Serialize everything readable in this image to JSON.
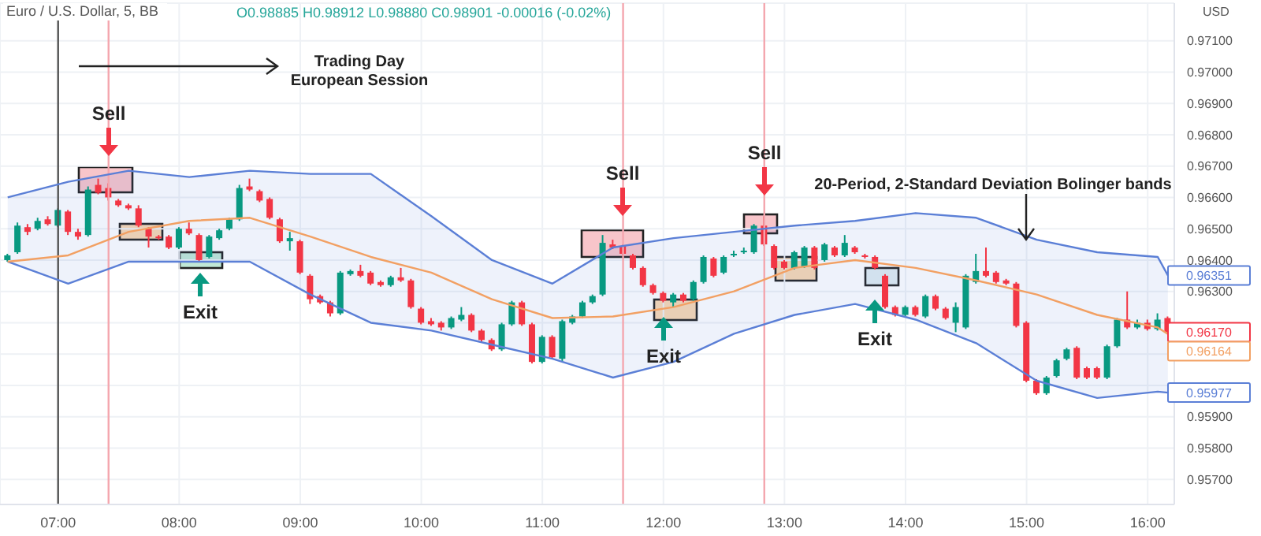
{
  "chart_data": {
    "type": "candlestick",
    "title": "Euro / U.S. Dollar, 5, BB",
    "subtitle": "O0.98885 H0.98912 L0.98880 C0.98901 -0.00016 (-0.02%)",
    "ylabel": "USD",
    "x": [
      6.5833,
      6.6667,
      6.75,
      6.8333,
      6.9167,
      7,
      7.0833,
      7.1667,
      7.25,
      7.3333,
      7.4167,
      7.5,
      7.5833,
      7.6667,
      7.75,
      7.8333,
      7.9167,
      8,
      8.0833,
      8.1667,
      8.25,
      8.3333,
      8.4167,
      8.5,
      8.5833,
      8.6667,
      8.75,
      8.8333,
      8.9167,
      9,
      9.0833,
      9.1667,
      9.25,
      9.3333,
      9.4167,
      9.5,
      9.5833,
      9.6667,
      9.75,
      9.8333,
      9.9167,
      10,
      10.0833,
      10.1667,
      10.25,
      10.3333,
      10.4167,
      10.5,
      10.5833,
      10.6667,
      10.75,
      10.8333,
      10.9167,
      11,
      11.0833,
      11.1667,
      11.25,
      11.3333,
      11.4167,
      11.5,
      11.5833,
      11.6667,
      11.75,
      11.8333,
      11.9167,
      12,
      12.0833,
      12.1667,
      12.25,
      12.3333,
      12.4167,
      12.5,
      12.5833,
      12.6667,
      12.75,
      12.8333,
      12.9167,
      13,
      13.0833,
      13.1667,
      13.25,
      13.3333,
      13.4167,
      13.5,
      13.5833,
      13.6667,
      13.75,
      13.8333,
      13.9167,
      14,
      14.0833,
      14.1667,
      14.25,
      14.3333,
      14.4167,
      14.5,
      14.5833,
      14.6667,
      14.75,
      14.8333,
      14.9167,
      15,
      15.0833,
      15.1667,
      15.25,
      15.3333,
      15.4167,
      15.5,
      15.5833,
      15.6667,
      15.75,
      15.8333,
      15.9167,
      16,
      16.0833,
      16.1667
    ],
    "ohlc": [
      [
        0.964,
        0.9642,
        0.96395,
        0.96415
      ],
      [
        0.96425,
        0.9652,
        0.9642,
        0.9651
      ],
      [
        0.96505,
        0.96515,
        0.9648,
        0.9649
      ],
      [
        0.965,
        0.96535,
        0.96495,
        0.96525
      ],
      [
        0.9653,
        0.9654,
        0.9651,
        0.96515
      ],
      [
        0.9651,
        0.96565,
        0.96505,
        0.9656
      ],
      [
        0.96555,
        0.9656,
        0.9648,
        0.9649
      ],
      [
        0.9649,
        0.965,
        0.96465,
        0.96475
      ],
      [
        0.9648,
        0.96635,
        0.96475,
        0.96625
      ],
      [
        0.9664,
        0.9666,
        0.9661,
        0.96615
      ],
      [
        0.9663,
        0.96645,
        0.9659,
        0.966
      ],
      [
        0.9659,
        0.96595,
        0.9657,
        0.96575
      ],
      [
        0.96575,
        0.9658,
        0.9656,
        0.96565
      ],
      [
        0.96565,
        0.96575,
        0.96505,
        0.9651
      ],
      [
        0.965,
        0.96505,
        0.9644,
        0.96475
      ],
      [
        0.96475,
        0.9648,
        0.96465,
        0.9647
      ],
      [
        0.96475,
        0.9648,
        0.96435,
        0.9644
      ],
      [
        0.9644,
        0.96505,
        0.96435,
        0.965
      ],
      [
        0.965,
        0.9652,
        0.9648,
        0.96485
      ],
      [
        0.9648,
        0.96485,
        0.96395,
        0.964
      ],
      [
        0.9641,
        0.9648,
        0.96405,
        0.96475
      ],
      [
        0.9647,
        0.965,
        0.96465,
        0.96495
      ],
      [
        0.965,
        0.96535,
        0.96495,
        0.9653
      ],
      [
        0.9653,
        0.9664,
        0.96525,
        0.9663
      ],
      [
        0.96635,
        0.9666,
        0.9662,
        0.96625
      ],
      [
        0.9662,
        0.96625,
        0.96585,
        0.9659
      ],
      [
        0.96595,
        0.966,
        0.9653,
        0.96535
      ],
      [
        0.9653,
        0.96535,
        0.96455,
        0.9646
      ],
      [
        0.9646,
        0.9649,
        0.9643,
        0.9647
      ],
      [
        0.9646,
        0.96465,
        0.96355,
        0.9636
      ],
      [
        0.9635,
        0.96355,
        0.9626,
        0.96275
      ],
      [
        0.96285,
        0.9629,
        0.9626,
        0.96265
      ],
      [
        0.96265,
        0.9627,
        0.9622,
        0.9623
      ],
      [
        0.9623,
        0.96365,
        0.96225,
        0.9636
      ],
      [
        0.96355,
        0.9637,
        0.9635,
        0.96365
      ],
      [
        0.96365,
        0.96385,
        0.96345,
        0.9635
      ],
      [
        0.9636,
        0.96365,
        0.9632,
        0.96325
      ],
      [
        0.9633,
        0.96335,
        0.96315,
        0.9632
      ],
      [
        0.9632,
        0.9635,
        0.96315,
        0.96345
      ],
      [
        0.96345,
        0.96375,
        0.9633,
        0.96335
      ],
      [
        0.96335,
        0.9634,
        0.96245,
        0.9625
      ],
      [
        0.96245,
        0.9625,
        0.96195,
        0.962
      ],
      [
        0.96205,
        0.96215,
        0.9619,
        0.96195
      ],
      [
        0.962,
        0.96205,
        0.96175,
        0.96185
      ],
      [
        0.96185,
        0.9622,
        0.9618,
        0.96215
      ],
      [
        0.9621,
        0.9625,
        0.96205,
        0.96225
      ],
      [
        0.96225,
        0.9623,
        0.9617,
        0.96175
      ],
      [
        0.96175,
        0.9618,
        0.9614,
        0.96145
      ],
      [
        0.96145,
        0.9615,
        0.9611,
        0.96115
      ],
      [
        0.96115,
        0.962,
        0.9611,
        0.96195
      ],
      [
        0.96195,
        0.9627,
        0.9619,
        0.96265
      ],
      [
        0.96265,
        0.9627,
        0.9619,
        0.96195
      ],
      [
        0.96195,
        0.962,
        0.9607,
        0.96075
      ],
      [
        0.96075,
        0.9616,
        0.9607,
        0.96155
      ],
      [
        0.96155,
        0.9616,
        0.96085,
        0.9609
      ],
      [
        0.96085,
        0.9621,
        0.96075,
        0.96205
      ],
      [
        0.962,
        0.96225,
        0.96195,
        0.9622
      ],
      [
        0.9622,
        0.9627,
        0.96215,
        0.96265
      ],
      [
        0.96265,
        0.9629,
        0.9626,
        0.96285
      ],
      [
        0.9629,
        0.9648,
        0.96285,
        0.96455
      ],
      [
        0.9645,
        0.96465,
        0.96435,
        0.9644
      ],
      [
        0.96445,
        0.9645,
        0.96415,
        0.9642
      ],
      [
        0.96415,
        0.9642,
        0.9637,
        0.96375
      ],
      [
        0.96375,
        0.9638,
        0.96315,
        0.9632
      ],
      [
        0.9632,
        0.96325,
        0.9629,
        0.96295
      ],
      [
        0.96295,
        0.963,
        0.96265,
        0.9627
      ],
      [
        0.96265,
        0.96295,
        0.9625,
        0.9629
      ],
      [
        0.9629,
        0.96295,
        0.96265,
        0.9627
      ],
      [
        0.96275,
        0.96335,
        0.9627,
        0.9633
      ],
      [
        0.9633,
        0.96415,
        0.96325,
        0.9641
      ],
      [
        0.96405,
        0.9641,
        0.96345,
        0.9635
      ],
      [
        0.9636,
        0.96415,
        0.96355,
        0.9641
      ],
      [
        0.96415,
        0.9643,
        0.9641,
        0.9642
      ],
      [
        0.96425,
        0.9644,
        0.9642,
        0.9643
      ],
      [
        0.96425,
        0.96515,
        0.9642,
        0.9651
      ],
      [
        0.9651,
        0.9654,
        0.96445,
        0.9645
      ],
      [
        0.96445,
        0.9645,
        0.9637,
        0.96375
      ],
      [
        0.96395,
        0.964,
        0.9637,
        0.96375
      ],
      [
        0.96375,
        0.9643,
        0.9637,
        0.96425
      ],
      [
        0.9638,
        0.96445,
        0.96375,
        0.9644
      ],
      [
        0.9644,
        0.96445,
        0.9637,
        0.96375
      ],
      [
        0.964,
        0.96455,
        0.96395,
        0.9645
      ],
      [
        0.9644,
        0.96445,
        0.9641,
        0.96415
      ],
      [
        0.96415,
        0.9648,
        0.9641,
        0.96455
      ],
      [
        0.9644,
        0.96445,
        0.9642,
        0.96425
      ],
      [
        0.96415,
        0.9642,
        0.96405,
        0.9641
      ],
      [
        0.9641,
        0.96415,
        0.9637,
        0.96375
      ],
      [
        0.9635,
        0.96355,
        0.96245,
        0.9625
      ],
      [
        0.9625,
        0.96255,
        0.9622,
        0.96225
      ],
      [
        0.96225,
        0.96255,
        0.9622,
        0.9625
      ],
      [
        0.9625,
        0.96255,
        0.9622,
        0.96225
      ],
      [
        0.9622,
        0.9629,
        0.96215,
        0.96285
      ],
      [
        0.96285,
        0.9629,
        0.9624,
        0.96245
      ],
      [
        0.96245,
        0.9625,
        0.9621,
        0.96215
      ],
      [
        0.962,
        0.96265,
        0.9617,
        0.9625
      ],
      [
        0.96185,
        0.96355,
        0.9618,
        0.9635
      ],
      [
        0.9633,
        0.9642,
        0.96325,
        0.96365
      ],
      [
        0.96365,
        0.9644,
        0.96345,
        0.9635
      ],
      [
        0.9636,
        0.96365,
        0.96325,
        0.9633
      ],
      [
        0.96335,
        0.9634,
        0.9632,
        0.96325
      ],
      [
        0.96325,
        0.9633,
        0.96185,
        0.9619
      ],
      [
        0.962,
        0.96205,
        0.9601,
        0.96015
      ],
      [
        0.96015,
        0.9602,
        0.9597,
        0.95975
      ],
      [
        0.95975,
        0.9603,
        0.9597,
        0.96025
      ],
      [
        0.9603,
        0.96085,
        0.96025,
        0.9608
      ],
      [
        0.96085,
        0.9612,
        0.9608,
        0.96115
      ],
      [
        0.9612,
        0.96125,
        0.9602,
        0.96025
      ],
      [
        0.96055,
        0.9606,
        0.9602,
        0.96025
      ],
      [
        0.96055,
        0.9606,
        0.9602,
        0.96025
      ],
      [
        0.96025,
        0.9613,
        0.9602,
        0.96125
      ],
      [
        0.96125,
        0.96215,
        0.9612,
        0.9621
      ],
      [
        0.9621,
        0.963,
        0.9618,
        0.96185
      ],
      [
        0.96185,
        0.9621,
        0.9618,
        0.962
      ],
      [
        0.962,
        0.9621,
        0.96175,
        0.9618
      ],
      [
        0.9618,
        0.9623,
        0.96175,
        0.9621
      ],
      [
        0.96215,
        0.9622,
        0.96165,
        0.9617
      ]
    ],
    "series": [
      {
        "type": "line",
        "color": "#5b7fd6",
        "x": [
          6.5833,
          7.0833,
          7.5833,
          8.0833,
          8.5833,
          9.0833,
          9.5833,
          10.0833,
          10.5833,
          11.0833,
          11.5833,
          12.0833,
          12.5833,
          13.0833,
          13.5833,
          14.0833,
          14.5833,
          15.0833,
          15.5833,
          16.0833,
          16.1667
        ],
        "values": [
          0.966,
          0.9665,
          0.96685,
          0.96665,
          0.96685,
          0.96675,
          0.96675,
          0.9654,
          0.964,
          0.96325,
          0.9644,
          0.9647,
          0.9649,
          0.9651,
          0.96525,
          0.9655,
          0.96535,
          0.96465,
          0.96425,
          0.9641,
          0.96351
        ],
        "value_labels": [
          null,
          null,
          null,
          null,
          null,
          null,
          null,
          null,
          null,
          null,
          null,
          null,
          null,
          null,
          null,
          null,
          null,
          null,
          null,
          null,
          "0.96351"
        ]
      },
      {
        "type": "line",
        "color": "#5b7fd6",
        "x": [
          6.5833,
          7.0833,
          7.5833,
          8.0833,
          8.5833,
          9.0833,
          9.5833,
          10.0833,
          10.5833,
          11.0833,
          11.5833,
          12.0833,
          12.5833,
          13.0833,
          13.5833,
          14.0833,
          14.5833,
          15.0833,
          15.5833,
          16.0833,
          16.1667
        ],
        "values": [
          0.96395,
          0.96325,
          0.96395,
          0.96395,
          0.96395,
          0.9629,
          0.962,
          0.96175,
          0.9613,
          0.96085,
          0.96025,
          0.96075,
          0.96165,
          0.96225,
          0.9626,
          0.9621,
          0.96135,
          0.96015,
          0.9596,
          0.9598,
          0.95977
        ],
        "value_labels": [
          null,
          null,
          null,
          null,
          null,
          null,
          null,
          null,
          null,
          null,
          null,
          null,
          null,
          null,
          null,
          null,
          null,
          null,
          null,
          null,
          "0.95977"
        ]
      },
      {
        "type": "line",
        "color": "#f2a063",
        "x": [
          6.5833,
          7.0833,
          7.5833,
          8.0833,
          8.5833,
          9.0833,
          9.5833,
          10.0833,
          10.5833,
          11.0833,
          11.5833,
          12.0833,
          12.5833,
          13.0833,
          13.5833,
          14.0833,
          14.5833,
          15.0833,
          15.5833,
          16.0833,
          16.1667
        ],
        "values": [
          0.96395,
          0.96415,
          0.9649,
          0.96525,
          0.96535,
          0.96475,
          0.9641,
          0.9636,
          0.96275,
          0.96215,
          0.9622,
          0.9625,
          0.963,
          0.96375,
          0.964,
          0.96375,
          0.96335,
          0.9629,
          0.96225,
          0.96185,
          0.96164
        ],
        "value_labels": [
          null,
          null,
          null,
          null,
          null,
          null,
          null,
          null,
          null,
          null,
          null,
          null,
          null,
          null,
          null,
          null,
          null,
          null,
          null,
          null,
          "0.96164"
        ],
        "upper": [
          0.966,
          0.9665,
          0.96685,
          0.96665,
          0.96685,
          0.96675,
          0.96675,
          0.9654,
          0.964,
          0.96325,
          0.9644,
          0.9647,
          0.9649,
          0.9651,
          0.96525,
          0.9655,
          0.96535,
          0.96465,
          0.96425,
          0.9641,
          0.96351
        ],
        "lower": [
          0.96395,
          0.96325,
          0.96395,
          0.96395,
          0.96395,
          0.9629,
          0.962,
          0.96175,
          0.9613,
          0.96085,
          0.96025,
          0.96075,
          0.96165,
          0.96225,
          0.9626,
          0.9621,
          0.96135,
          0.96015,
          0.9596,
          0.9598,
          0.95977
        ]
      }
    ],
    "xlim": [
      6.52,
      16.22
    ],
    "xticks": [
      {
        "value": 7,
        "label": "07:00"
      },
      {
        "value": 8,
        "label": "08:00"
      },
      {
        "value": 9,
        "label": "09:00"
      },
      {
        "value": 10,
        "label": "10:00"
      },
      {
        "value": 11,
        "label": "11:00"
      },
      {
        "value": 12,
        "label": "12:00"
      },
      {
        "value": 13,
        "label": "13:00"
      },
      {
        "value": 14,
        "label": "14:00"
      },
      {
        "value": 15,
        "label": "15:00"
      },
      {
        "value": 16,
        "label": "16:00"
      }
    ],
    "ylim": [
      0.9562,
      0.9722
    ],
    "yticks": [
      {
        "value": 0.957,
        "label": "0.95700"
      },
      {
        "value": 0.958,
        "label": "0.95800"
      },
      {
        "value": 0.959,
        "label": "0.95900"
      },
      {
        "value": 0.96,
        "label": null
      },
      {
        "value": 0.961,
        "label": null
      },
      {
        "value": 0.962,
        "label": null
      },
      {
        "value": 0.963,
        "label": "0.96300"
      },
      {
        "value": 0.964,
        "label": "0.96400"
      },
      {
        "value": 0.965,
        "label": "0.96500"
      },
      {
        "value": 0.966,
        "label": "0.96600"
      },
      {
        "value": 0.967,
        "label": "0.96700"
      },
      {
        "value": 0.968,
        "label": "0.96800"
      },
      {
        "value": 0.969,
        "label": "0.96900"
      },
      {
        "value": 0.97,
        "label": "0.97000"
      },
      {
        "value": 0.971,
        "label": "0.97100"
      }
    ],
    "grid": true,
    "ref_lines": [
      {
        "axis": "x",
        "value": 7,
        "color": "#555555"
      },
      {
        "axis": "x",
        "value": 7.4167,
        "color": "#f4a6ae"
      },
      {
        "axis": "x",
        "value": 11.6667,
        "color": "#f4a6ae"
      },
      {
        "axis": "x",
        "value": 12.8333,
        "color": "#f4a6ae"
      }
    ],
    "annotations": [
      "Trading Day\nEuropean Session",
      "20-Period, 2-Standard Deviation Bolinger bands",
      "Sell",
      "Sell",
      "Sell",
      "Exit",
      "Exit",
      "Exit",
      {
        "text": "0.96170",
        "x": 16.1667,
        "y": 0.9617
      }
    ]
  }
}
